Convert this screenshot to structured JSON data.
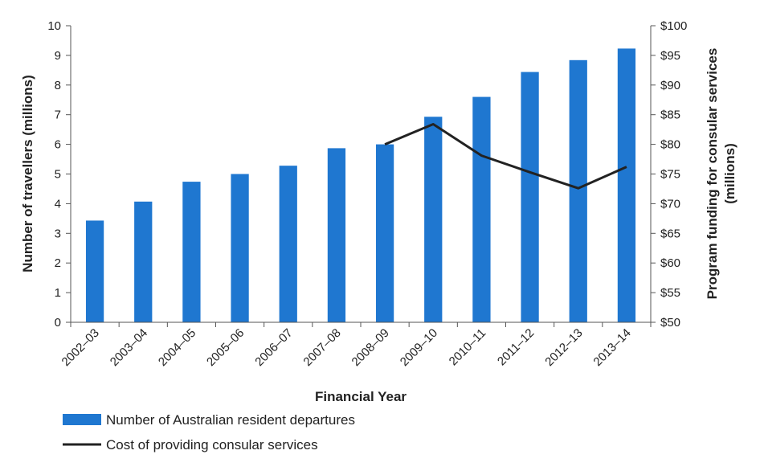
{
  "chart_data": {
    "type": "bar",
    "categories": [
      "2002–03",
      "2003–04",
      "2004–05",
      "2005–06",
      "2006–07",
      "2007–08",
      "2008–09",
      "2009–10",
      "2010–11",
      "2011–12",
      "2012–13",
      "2013–14"
    ],
    "series": [
      {
        "name": "Number of Australian resident departures",
        "type": "bar",
        "axis": "left",
        "color": "#1f77d0",
        "values": [
          3.43,
          4.07,
          4.74,
          5.0,
          5.28,
          5.87,
          6.0,
          6.93,
          7.6,
          8.44,
          8.84,
          9.23
        ]
      },
      {
        "name": "Cost of providing consular services",
        "type": "line",
        "axis": "right",
        "color": "#222222",
        "values": [
          null,
          null,
          null,
          null,
          null,
          null,
          80.0,
          83.4,
          78.1,
          75.3,
          72.6,
          76.2
        ]
      }
    ],
    "xlabel": "Financial Year",
    "ylabel": "Number of travellers (millions)",
    "y2label_line1": "Program funding for consular services",
    "y2label_line2": "(millions)",
    "ylim": [
      0,
      10
    ],
    "y2lim": [
      50,
      100
    ],
    "yticks": [
      "0",
      "1",
      "2",
      "3",
      "4",
      "5",
      "6",
      "7",
      "8",
      "9",
      "10"
    ],
    "y2ticks": [
      "$50",
      "$55",
      "$60",
      "$65",
      "$70",
      "$75",
      "$80",
      "$85",
      "$90",
      "$95",
      "$100"
    ],
    "grid": false,
    "legend": "bottom-left"
  }
}
